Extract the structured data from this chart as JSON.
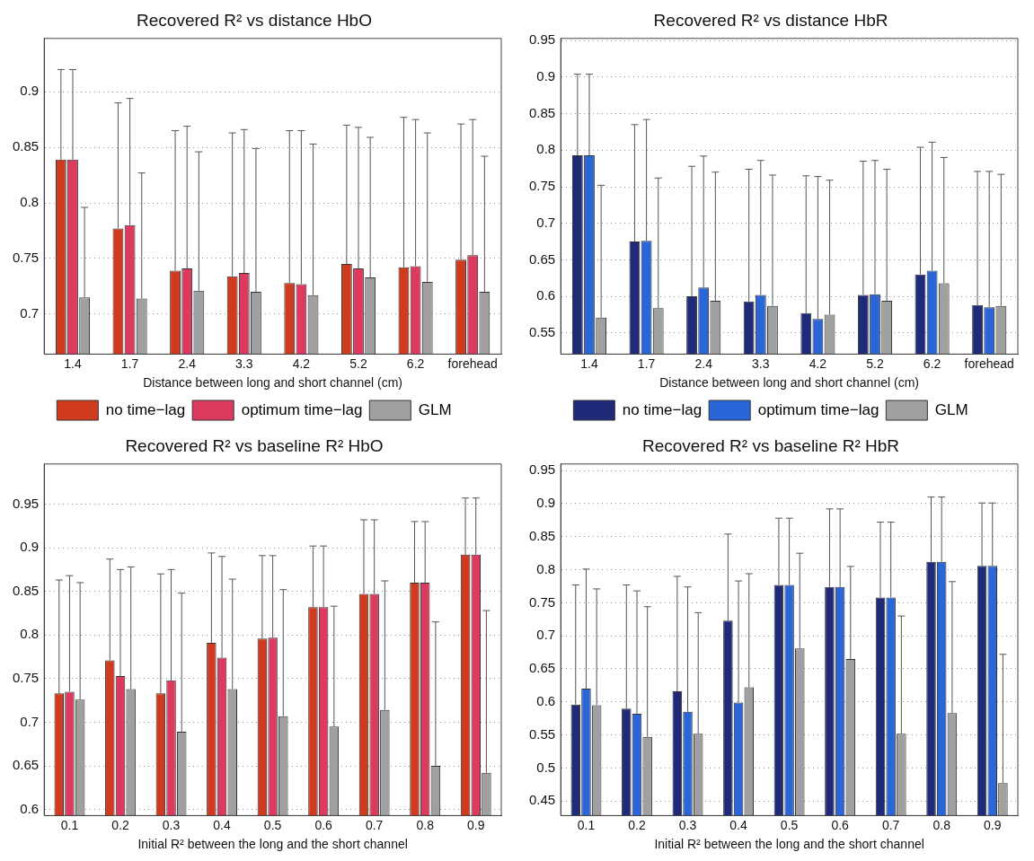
{
  "chart_data": [
    {
      "type": "bar",
      "title": "Recovered R² vs distance HbO",
      "xlabel": "Distance between long and short channel (cm)",
      "categories": [
        "1.4",
        "1.7",
        "2.4",
        "3.3",
        "4.2",
        "5.2",
        "6.2",
        "forehead"
      ],
      "ylim": [
        0.664,
        0.948
      ],
      "yticks": [
        0.7,
        0.75,
        0.8,
        0.85,
        0.9
      ],
      "grid": "y",
      "legend": "bottom",
      "series": [
        {
          "name": "no time−lag",
          "color": "#d03a1e",
          "values": [
            0.839,
            0.777,
            0.739,
            0.734,
            0.728,
            0.745,
            0.742,
            0.749
          ],
          "errors": [
            [
              0.839,
              0.92
            ],
            [
              0.777,
              0.89
            ],
            [
              0.739,
              0.865
            ],
            [
              0.734,
              0.863
            ],
            [
              0.728,
              0.865
            ],
            [
              0.745,
              0.87
            ],
            [
              0.742,
              0.877
            ],
            [
              0.749,
              0.871
            ]
          ]
        },
        {
          "name": "optimum time−lag",
          "color": "#dc3a5e",
          "values": [
            0.839,
            0.78,
            0.741,
            0.737,
            0.727,
            0.741,
            0.743,
            0.753
          ],
          "errors": [
            [
              0.839,
              0.92
            ],
            [
              0.78,
              0.894
            ],
            [
              0.741,
              0.869
            ],
            [
              0.737,
              0.866
            ],
            [
              0.727,
              0.865
            ],
            [
              0.741,
              0.868
            ],
            [
              0.743,
              0.875
            ],
            [
              0.753,
              0.875
            ]
          ]
        },
        {
          "name": "GLM",
          "color": "#a0a0a0",
          "values": [
            0.715,
            0.714,
            0.721,
            0.72,
            0.717,
            0.733,
            0.729,
            0.72
          ],
          "errors": [
            [
              0.715,
              0.796
            ],
            [
              0.714,
              0.827
            ],
            [
              0.721,
              0.846
            ],
            [
              0.72,
              0.849
            ],
            [
              0.717,
              0.853
            ],
            [
              0.733,
              0.859
            ],
            [
              0.729,
              0.863
            ],
            [
              0.72,
              0.842
            ]
          ]
        }
      ]
    },
    {
      "type": "bar",
      "title": "Recovered R² vs distance HbR",
      "xlabel": "Distance between long and short channel (cm)",
      "categories": [
        "1.4",
        "1.7",
        "2.4",
        "3.3",
        "4.2",
        "5.2",
        "6.2",
        "forehead"
      ],
      "ylim": [
        0.521,
        0.953
      ],
      "yticks": [
        0.55,
        0.6,
        0.65,
        0.7,
        0.75,
        0.8,
        0.85,
        0.9,
        0.95
      ],
      "grid": "y",
      "legend": "bottom",
      "series": [
        {
          "name": "no time−lag",
          "color": "#1f2a78",
          "values": [
            0.793,
            0.675,
            0.6,
            0.593,
            0.577,
            0.602,
            0.63,
            0.588
          ],
          "errors": [
            [
              0.793,
              0.904
            ],
            [
              0.675,
              0.835
            ],
            [
              0.6,
              0.778
            ],
            [
              0.593,
              0.774
            ],
            [
              0.577,
              0.765
            ],
            [
              0.602,
              0.785
            ],
            [
              0.63,
              0.804
            ],
            [
              0.588,
              0.771
            ]
          ]
        },
        {
          "name": "optimum time−lag",
          "color": "#2a66d8",
          "values": [
            0.793,
            0.676,
            0.612,
            0.602,
            0.569,
            0.603,
            0.635,
            0.585
          ],
          "errors": [
            [
              0.793,
              0.904
            ],
            [
              0.676,
              0.842
            ],
            [
              0.612,
              0.792
            ],
            [
              0.602,
              0.786
            ],
            [
              0.569,
              0.764
            ],
            [
              0.603,
              0.786
            ],
            [
              0.635,
              0.811
            ],
            [
              0.585,
              0.771
            ]
          ]
        },
        {
          "name": "GLM",
          "color": "#a0a0a0",
          "values": [
            0.571,
            0.584,
            0.594,
            0.587,
            0.575,
            0.594,
            0.618,
            0.587
          ],
          "errors": [
            [
              0.571,
              0.752
            ],
            [
              0.584,
              0.762
            ],
            [
              0.594,
              0.77
            ],
            [
              0.587,
              0.766
            ],
            [
              0.575,
              0.759
            ],
            [
              0.594,
              0.774
            ],
            [
              0.618,
              0.79
            ],
            [
              0.587,
              0.767
            ]
          ]
        }
      ]
    },
    {
      "type": "bar",
      "title": "Recovered R² vs baseline R² HbO",
      "xlabel": "Initial R² between the long and the short channel",
      "categories": [
        "0.1",
        "0.2",
        "0.3",
        "0.4",
        "0.5",
        "0.6",
        "0.7",
        "0.8",
        "0.9"
      ],
      "ylim": [
        0.593,
        0.996
      ],
      "yticks": [
        0.6,
        0.65,
        0.7,
        0.75,
        0.8,
        0.85,
        0.9,
        0.95
      ],
      "grid": "y",
      "series": [
        {
          "color": "#d03a1e",
          "values": [
            0.733,
            0.771,
            0.733,
            0.791,
            0.796,
            0.832,
            0.847,
            0.86,
            0.892
          ],
          "errors": [
            [
              0.733,
              0.863
            ],
            [
              0.771,
              0.887
            ],
            [
              0.733,
              0.87
            ],
            [
              0.791,
              0.894
            ],
            [
              0.796,
              0.891
            ],
            [
              0.832,
              0.902
            ],
            [
              0.847,
              0.932
            ],
            [
              0.86,
              0.93
            ],
            [
              0.892,
              0.957
            ]
          ]
        },
        {
          "color": "#dc3a5e",
          "values": [
            0.735,
            0.753,
            0.748,
            0.774,
            0.797,
            0.832,
            0.847,
            0.86,
            0.892
          ],
          "errors": [
            [
              0.735,
              0.868
            ],
            [
              0.753,
              0.875
            ],
            [
              0.748,
              0.875
            ],
            [
              0.774,
              0.89
            ],
            [
              0.797,
              0.891
            ],
            [
              0.832,
              0.902
            ],
            [
              0.847,
              0.932
            ],
            [
              0.86,
              0.93
            ],
            [
              0.892,
              0.957
            ]
          ]
        },
        {
          "color": "#a0a0a0",
          "values": [
            0.726,
            0.738,
            0.689,
            0.738,
            0.707,
            0.695,
            0.714,
            0.65,
            0.642
          ],
          "errors": [
            [
              0.726,
              0.86
            ],
            [
              0.738,
              0.878
            ],
            [
              0.689,
              0.848
            ],
            [
              0.738,
              0.864
            ],
            [
              0.707,
              0.852
            ],
            [
              0.695,
              0.833
            ],
            [
              0.714,
              0.862
            ],
            [
              0.65,
              0.815
            ],
            [
              0.642,
              0.828
            ]
          ]
        }
      ]
    },
    {
      "type": "bar",
      "title": "Recovered R² vs baseline R² HbR",
      "xlabel": "Initial R² between the long and the short channel",
      "categories": [
        "0.1",
        "0.2",
        "0.3",
        "0.4",
        "0.5",
        "0.6",
        "0.7",
        "0.8",
        "0.9"
      ],
      "ylim": [
        0.428,
        0.96
      ],
      "yticks": [
        0.45,
        0.5,
        0.55,
        0.6,
        0.65,
        0.7,
        0.75,
        0.8,
        0.85,
        0.9,
        0.95
      ],
      "grid": "y",
      "series": [
        {
          "color": "#1f2a78",
          "values": [
            0.596,
            0.59,
            0.616,
            0.723,
            0.777,
            0.774,
            0.758,
            0.812,
            0.806
          ],
          "errors": [
            [
              0.596,
              0.777
            ],
            [
              0.59,
              0.777
            ],
            [
              0.616,
              0.79
            ],
            [
              0.723,
              0.854
            ],
            [
              0.777,
              0.878
            ],
            [
              0.774,
              0.892
            ],
            [
              0.758,
              0.872
            ],
            [
              0.812,
              0.91
            ],
            [
              0.806,
              0.901
            ]
          ]
        },
        {
          "color": "#2a66d8",
          "values": [
            0.62,
            0.582,
            0.585,
            0.599,
            0.777,
            0.774,
            0.758,
            0.812,
            0.806
          ],
          "errors": [
            [
              0.62,
              0.801
            ],
            [
              0.582,
              0.768
            ],
            [
              0.585,
              0.774
            ],
            [
              0.599,
              0.783
            ],
            [
              0.777,
              0.878
            ],
            [
              0.774,
              0.892
            ],
            [
              0.758,
              0.872
            ],
            [
              0.812,
              0.91
            ],
            [
              0.806,
              0.901
            ]
          ]
        },
        {
          "color": "#a0a0a0",
          "values": [
            0.595,
            0.547,
            0.552,
            0.622,
            0.681,
            0.665,
            0.552,
            0.583,
            0.477
          ],
          "errors": [
            [
              0.595,
              0.771
            ],
            [
              0.547,
              0.744
            ],
            [
              0.552,
              0.735
            ],
            [
              0.622,
              0.794
            ],
            [
              0.681,
              0.825
            ],
            [
              0.665,
              0.805
            ],
            [
              0.552,
              0.73
            ],
            [
              0.583,
              0.782
            ],
            [
              0.477,
              0.672
            ]
          ]
        }
      ]
    }
  ]
}
